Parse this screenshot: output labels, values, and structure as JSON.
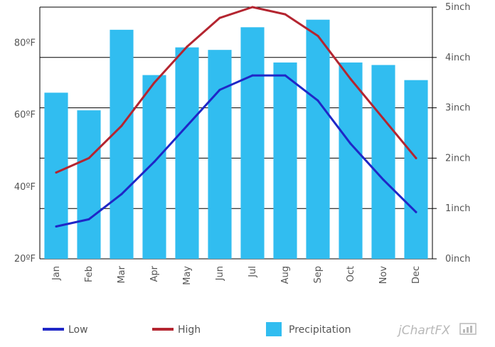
{
  "chart_data": {
    "type": "bar+line",
    "categories": [
      "Jan",
      "Feb",
      "Mar",
      "Apr",
      "May",
      "Jun",
      "Jul",
      "Aug",
      "Sep",
      "Oct",
      "Nov",
      "Dec"
    ],
    "series": [
      {
        "name": "Precipitation",
        "type": "bar",
        "axis": "right",
        "color": "#31bdf0",
        "values": [
          3.3,
          2.95,
          4.55,
          3.65,
          4.2,
          4.15,
          4.6,
          3.9,
          4.75,
          3.9,
          3.85,
          3.55
        ]
      },
      {
        "name": "Low",
        "type": "line",
        "axis": "left",
        "color": "#1f27c7",
        "values": [
          29,
          31,
          38,
          47,
          57,
          67,
          71,
          71,
          64,
          52,
          42,
          33
        ]
      },
      {
        "name": "High",
        "type": "line",
        "axis": "left",
        "color": "#b42530",
        "values": [
          44,
          48,
          57,
          69,
          79,
          87,
          90,
          88,
          82,
          70,
          59,
          48
        ]
      }
    ],
    "left_axis": {
      "min": 20,
      "max": 90,
      "ticks": [
        20,
        40,
        60,
        80
      ],
      "tick_labels": [
        "20ºF",
        "40ºF",
        "60ºF",
        "80ºF"
      ]
    },
    "right_axis": {
      "min": 0,
      "max": 5,
      "ticks": [
        0,
        1,
        2,
        3,
        4,
        5
      ],
      "tick_labels": [
        "0inch",
        "1inch",
        "2inch",
        "3inch",
        "4inch",
        "5inch"
      ]
    },
    "grid": true,
    "legend": {
      "position": "bottom",
      "items": [
        "Low",
        "High",
        "Precipitation"
      ]
    },
    "branding": "jChartFX"
  }
}
